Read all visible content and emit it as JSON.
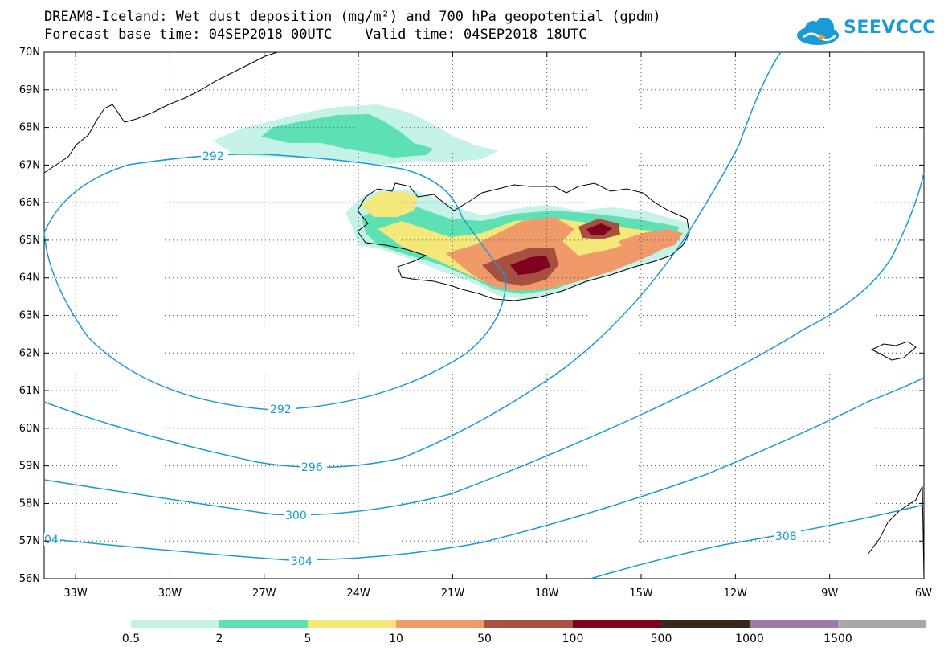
{
  "header": {
    "title_line1": "DREAM8-Iceland: Wet dust deposition (mg/m²) and 700 hPa geopotential (gpdm)",
    "title_line2": "Forecast base time: 04SEP2018 00UTC    Valid time: 04SEP2018 18UTC",
    "logo_text": "SEEVCCC"
  },
  "map": {
    "lat_labels": [
      "70N",
      "69N",
      "68N",
      "67N",
      "66N",
      "65N",
      "64N",
      "63N",
      "62N",
      "61N",
      "60N",
      "59N",
      "58N",
      "57N",
      "56N"
    ],
    "lon_labels": [
      "33W",
      "30W",
      "27W",
      "24W",
      "21W",
      "18W",
      "15W",
      "12W",
      "9W",
      "6W"
    ],
    "contour_labels": [
      {
        "value": "292",
        "pos": "north"
      },
      {
        "value": "292",
        "pos": "south"
      },
      {
        "value": "296",
        "pos": "mid"
      },
      {
        "value": "300",
        "pos": "mid"
      },
      {
        "value": "304",
        "pos": "mid"
      },
      {
        "value": "04",
        "pos": "left-edge"
      },
      {
        "value": "308",
        "pos": "east"
      }
    ],
    "contour_color": "#1a9ad6"
  },
  "legend": {
    "labels": [
      "0.5",
      "2",
      "5",
      "10",
      "50",
      "100",
      "500",
      "1000",
      "1500"
    ],
    "colors": [
      "#c4f2e8",
      "#5de0b4",
      "#f5e87a",
      "#f09a6a",
      "#a85040",
      "#800020",
      "#3a2818",
      "#9a78a8",
      "#a8a8a8"
    ]
  }
}
